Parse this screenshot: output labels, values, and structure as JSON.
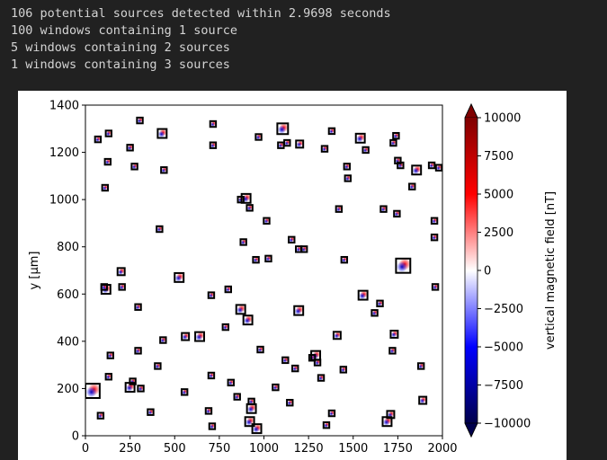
{
  "output": {
    "lines": [
      "106 potential sources detected within 2.9698 seconds",
      "100 windows containing 1 source",
      "5 windows containing 2 sources",
      "1 windows containing 3 sources"
    ]
  },
  "chart_data": {
    "type": "heatmap",
    "ylabel": "y [µm]",
    "xlabel": "",
    "colorbar_label": "vertical magnetic field [nT]",
    "xlim": [
      0,
      2000
    ],
    "ylim": [
      0,
      1400
    ],
    "x_ticks": [
      "0",
      "250",
      "500",
      "750",
      "1000",
      "1250",
      "1500",
      "1750",
      "2000"
    ],
    "y_ticks": [
      "0",
      "200",
      "400",
      "600",
      "800",
      "1000",
      "1200",
      "1400"
    ],
    "colorbar_range": [
      -10000,
      10000
    ],
    "colorbar_ticks": [
      "10000",
      "7500",
      "5000",
      "2500",
      "0",
      "−2500",
      "−5000",
      "−7500",
      "−10000"
    ],
    "colormap": [
      "#00004c",
      "#0000ff",
      "#ffffff",
      "#ff0000",
      "#7f0000"
    ],
    "windows": [
      [
        40,
        190,
        40
      ],
      [
        85,
        85,
        15
      ],
      [
        110,
        1050,
        15
      ],
      [
        115,
        620,
        25
      ],
      [
        130,
        1280,
        15
      ],
      [
        70,
        1255,
        15
      ],
      [
        105,
        630,
        15
      ],
      [
        200,
        695,
        20
      ],
      [
        205,
        630,
        15
      ],
      [
        140,
        340,
        15
      ],
      [
        130,
        250,
        15
      ],
      [
        250,
        1220,
        15
      ],
      [
        265,
        230,
        15
      ],
      [
        275,
        1140,
        15
      ],
      [
        305,
        1335,
        15
      ],
      [
        295,
        545,
        15
      ],
      [
        295,
        360,
        15
      ],
      [
        310,
        200,
        15
      ],
      [
        250,
        205,
        25
      ],
      [
        365,
        100,
        15
      ],
      [
        405,
        295,
        15
      ],
      [
        435,
        405,
        15
      ],
      [
        440,
        1125,
        15
      ],
      [
        430,
        1280,
        25
      ],
      [
        415,
        875,
        15
      ],
      [
        525,
        670,
        25
      ],
      [
        560,
        420,
        20
      ],
      [
        640,
        420,
        25
      ],
      [
        555,
        185,
        15
      ],
      [
        715,
        1230,
        15
      ],
      [
        715,
        1320,
        15
      ],
      [
        705,
        595,
        15
      ],
      [
        705,
        255,
        15
      ],
      [
        690,
        105,
        15
      ],
      [
        710,
        40,
        15
      ],
      [
        800,
        620,
        15
      ],
      [
        785,
        460,
        15
      ],
      [
        815,
        225,
        15
      ],
      [
        850,
        165,
        15
      ],
      [
        870,
        535,
        25
      ],
      [
        910,
        490,
        25
      ],
      [
        900,
        1005,
        25
      ],
      [
        920,
        965,
        15
      ],
      [
        930,
        145,
        15
      ],
      [
        930,
        115,
        25
      ],
      [
        920,
        60,
        25
      ],
      [
        960,
        30,
        25
      ],
      [
        970,
        1265,
        15
      ],
      [
        980,
        365,
        15
      ],
      [
        955,
        745,
        15
      ],
      [
        1015,
        910,
        15
      ],
      [
        1025,
        750,
        15
      ],
      [
        1065,
        205,
        15
      ],
      [
        1105,
        1300,
        30
      ],
      [
        1095,
        1230,
        15
      ],
      [
        1120,
        320,
        15
      ],
      [
        1145,
        140,
        15
      ],
      [
        1130,
        1240,
        15
      ],
      [
        1155,
        830,
        15
      ],
      [
        1195,
        790,
        15
      ],
      [
        1175,
        285,
        15
      ],
      [
        1200,
        1235,
        20
      ],
      [
        1195,
        530,
        25
      ],
      [
        1225,
        790,
        15
      ],
      [
        1270,
        330,
        15
      ],
      [
        1290,
        340,
        25
      ],
      [
        1300,
        310,
        15
      ],
      [
        1320,
        245,
        15
      ],
      [
        1350,
        45,
        15
      ],
      [
        1380,
        1290,
        15
      ],
      [
        1380,
        95,
        15
      ],
      [
        1410,
        425,
        20
      ],
      [
        1420,
        960,
        15
      ],
      [
        1445,
        280,
        15
      ],
      [
        1450,
        745,
        15
      ],
      [
        1465,
        1140,
        15
      ],
      [
        1470,
        1090,
        15
      ],
      [
        1540,
        1260,
        25
      ],
      [
        1555,
        595,
        25
      ],
      [
        1570,
        1210,
        15
      ],
      [
        1620,
        520,
        15
      ],
      [
        1650,
        560,
        15
      ],
      [
        1670,
        960,
        15
      ],
      [
        1690,
        60,
        25
      ],
      [
        1710,
        90,
        20
      ],
      [
        1720,
        360,
        15
      ],
      [
        1730,
        430,
        20
      ],
      [
        1725,
        1240,
        15
      ],
      [
        1745,
        940,
        15
      ],
      [
        1740,
        1270,
        15
      ],
      [
        1750,
        1165,
        15
      ],
      [
        1765,
        1145,
        15
      ],
      [
        1780,
        720,
        40
      ],
      [
        1830,
        1055,
        15
      ],
      [
        1855,
        1125,
        25
      ],
      [
        1880,
        295,
        15
      ],
      [
        1890,
        150,
        20
      ],
      [
        1940,
        1145,
        15
      ],
      [
        1955,
        910,
        15
      ],
      [
        1955,
        840,
        15
      ],
      [
        1960,
        630,
        15
      ],
      [
        1980,
        1135,
        15
      ],
      [
        125,
        1160,
        15
      ],
      [
        885,
        820,
        15
      ],
      [
        870,
        1000,
        15
      ],
      [
        1340,
        1215,
        15
      ]
    ]
  }
}
